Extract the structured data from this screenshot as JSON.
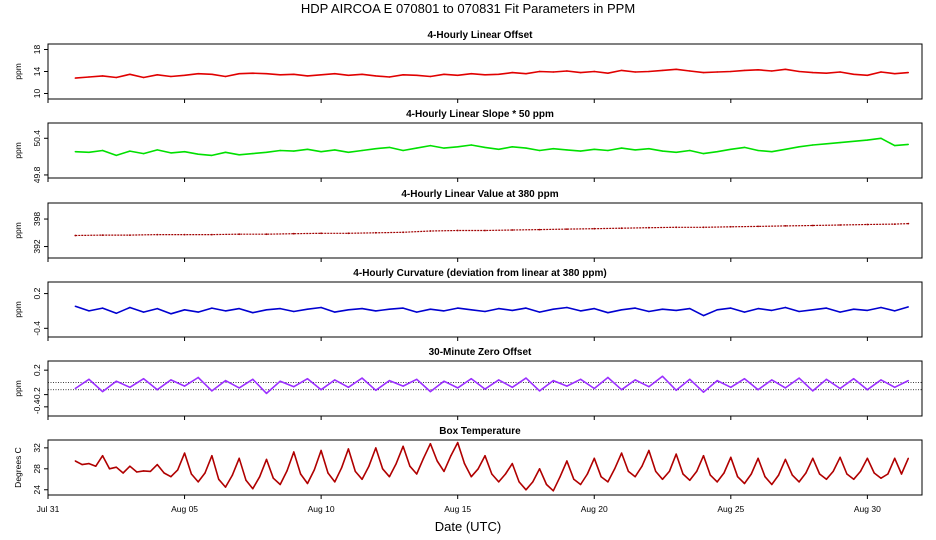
{
  "page_title": "HDP   AIRCOA E   070801 to 070831   Fit Parameters in PPM",
  "xlabel": "Date (UTC)",
  "x_ticks": [
    "Jul 31",
    "Aug 05",
    "Aug 10",
    "Aug 15",
    "Aug 20",
    "Aug 25",
    "Aug 30"
  ],
  "colors": {
    "linear_offset": "#e00000",
    "linear_slope": "#00e000",
    "linear_value": "#a00000",
    "curvature": "#0000d0",
    "zero_offset": "#9b30ff",
    "box_temperature": "#b00000",
    "frame": "#000000"
  },
  "chart_data": [
    {
      "type": "line",
      "title": "4-Hourly Linear Offset",
      "ylabel": "ppm",
      "y_ticks": [
        "10",
        "14",
        "18"
      ],
      "ylim": [
        9,
        19
      ],
      "xlim": [
        0,
        32
      ],
      "grid": false,
      "series": [
        {
          "x": [
            1.0,
            1.5,
            2.0,
            2.5,
            3.0,
            3.5,
            4.0,
            4.5,
            5.0,
            5.5,
            6.0,
            6.5,
            7.0,
            7.5,
            8.0,
            8.5,
            9.0,
            9.5,
            10.0,
            10.5,
            11.0,
            11.5,
            12.0,
            12.5,
            13.0,
            13.5,
            14.0,
            14.5,
            15.0,
            15.5,
            16.0,
            16.5,
            17.0,
            17.5,
            18.0,
            18.5,
            19.0,
            19.5,
            20.0,
            20.5,
            21.0,
            21.5,
            22.0,
            22.5,
            23.0,
            23.5,
            24.0,
            24.5,
            25.0,
            25.5,
            26.0,
            26.5,
            27.0,
            27.5,
            28.0,
            28.5,
            29.0,
            29.5,
            30.0,
            30.5,
            31.0,
            31.5
          ],
          "values": [
            12.8,
            13.0,
            13.2,
            12.9,
            13.5,
            12.9,
            13.4,
            13.1,
            13.3,
            13.6,
            13.5,
            13.1,
            13.6,
            13.7,
            13.6,
            13.4,
            13.5,
            13.2,
            13.4,
            13.6,
            13.3,
            13.5,
            13.2,
            13.0,
            13.4,
            13.3,
            13.1,
            13.5,
            13.3,
            13.6,
            13.4,
            13.5,
            13.8,
            13.6,
            14.0,
            13.9,
            14.1,
            13.8,
            14.0,
            13.7,
            14.2,
            13.9,
            14.0,
            14.2,
            14.4,
            14.1,
            13.8,
            13.9,
            14.0,
            14.2,
            14.3,
            14.1,
            14.4,
            14.0,
            13.8,
            13.7,
            13.9,
            13.5,
            13.3,
            13.9,
            13.6,
            13.8
          ]
        }
      ]
    },
    {
      "type": "line",
      "title": "4-Hourly Linear Slope * 50 ppm",
      "ylabel": "ppm",
      "y_ticks": [
        "49.8",
        "50.4"
      ],
      "ylim": [
        49.75,
        50.65
      ],
      "xlim": [
        0,
        32
      ],
      "grid": false,
      "series": [
        {
          "x": [
            1.0,
            1.5,
            2.0,
            2.5,
            3.0,
            3.5,
            4.0,
            4.5,
            5.0,
            5.5,
            6.0,
            6.5,
            7.0,
            7.5,
            8.0,
            8.5,
            9.0,
            9.5,
            10.0,
            10.5,
            11.0,
            11.5,
            12.0,
            12.5,
            13.0,
            13.5,
            14.0,
            14.5,
            15.0,
            15.5,
            16.0,
            16.5,
            17.0,
            17.5,
            18.0,
            18.5,
            19.0,
            19.5,
            20.0,
            20.5,
            21.0,
            21.5,
            22.0,
            22.5,
            23.0,
            23.5,
            24.0,
            24.5,
            25.0,
            25.5,
            26.0,
            26.5,
            27.0,
            27.5,
            28.0,
            28.5,
            29.0,
            29.5,
            30.0,
            30.5,
            31.0,
            31.5
          ],
          "values": [
            50.18,
            50.17,
            50.2,
            50.12,
            50.19,
            50.15,
            50.21,
            50.16,
            50.18,
            50.14,
            50.12,
            50.17,
            50.13,
            50.15,
            50.17,
            50.2,
            50.19,
            50.22,
            50.18,
            50.21,
            50.17,
            50.2,
            50.23,
            50.25,
            50.2,
            50.24,
            50.28,
            50.24,
            50.26,
            50.29,
            50.25,
            50.22,
            50.26,
            50.24,
            50.2,
            50.23,
            50.21,
            50.19,
            50.22,
            50.2,
            50.24,
            50.21,
            50.23,
            50.19,
            50.17,
            50.2,
            50.15,
            50.18,
            50.22,
            50.25,
            50.2,
            50.18,
            50.22,
            50.26,
            50.29,
            50.31,
            50.33,
            50.35,
            50.37,
            50.4,
            50.28,
            50.3
          ]
        }
      ]
    },
    {
      "type": "line",
      "title": "4-Hourly Linear Value at 380 ppm",
      "ylabel": "ppm",
      "y_ticks": [
        "392",
        "398"
      ],
      "ylim": [
        389.5,
        401.5
      ],
      "xlim": [
        0,
        32
      ],
      "grid": false,
      "series": [
        {
          "x": [
            1.0,
            2.0,
            3.0,
            4.0,
            5.0,
            6.0,
            7.0,
            8.0,
            9.0,
            10.0,
            11.0,
            12.0,
            13.0,
            14.0,
            15.0,
            16.0,
            17.0,
            18.0,
            19.0,
            20.0,
            21.0,
            22.0,
            23.0,
            24.0,
            25.0,
            26.0,
            27.0,
            28.0,
            29.0,
            30.0,
            31.0,
            31.5
          ],
          "values": [
            394.4,
            394.5,
            394.5,
            394.6,
            394.6,
            394.6,
            394.7,
            394.7,
            394.8,
            394.9,
            394.9,
            395.0,
            395.1,
            395.4,
            395.5,
            395.5,
            395.6,
            395.7,
            395.8,
            395.9,
            396.0,
            396.1,
            396.2,
            396.2,
            396.3,
            396.4,
            396.5,
            396.6,
            396.7,
            396.8,
            396.9,
            397.0
          ]
        }
      ]
    },
    {
      "type": "line",
      "title": "4-Hourly Curvature (deviation from linear at 380 ppm)",
      "ylabel": "ppm",
      "y_ticks": [
        "-0.4",
        "0.2"
      ],
      "ylim": [
        -0.55,
        0.4
      ],
      "xlim": [
        0,
        32
      ],
      "grid": false,
      "series": [
        {
          "x": [
            1.0,
            1.5,
            2.0,
            2.5,
            3.0,
            3.5,
            4.0,
            4.5,
            5.0,
            5.5,
            6.0,
            6.5,
            7.0,
            7.5,
            8.0,
            8.5,
            9.0,
            9.5,
            10.0,
            10.5,
            11.0,
            11.5,
            12.0,
            12.5,
            13.0,
            13.5,
            14.0,
            14.5,
            15.0,
            15.5,
            16.0,
            16.5,
            17.0,
            17.5,
            18.0,
            18.5,
            19.0,
            19.5,
            20.0,
            20.5,
            21.0,
            21.5,
            22.0,
            22.5,
            23.0,
            23.5,
            24.0,
            24.5,
            25.0,
            25.5,
            26.0,
            26.5,
            27.0,
            27.5,
            28.0,
            28.5,
            29.0,
            29.5,
            30.0,
            30.5,
            31.0,
            31.5
          ],
          "values": [
            -0.02,
            -0.1,
            -0.05,
            -0.14,
            -0.04,
            -0.12,
            -0.06,
            -0.15,
            -0.08,
            -0.12,
            -0.05,
            -0.1,
            -0.06,
            -0.13,
            -0.08,
            -0.06,
            -0.11,
            -0.07,
            -0.04,
            -0.12,
            -0.08,
            -0.06,
            -0.1,
            -0.07,
            -0.05,
            -0.12,
            -0.07,
            -0.1,
            -0.05,
            -0.08,
            -0.11,
            -0.06,
            -0.09,
            -0.05,
            -0.12,
            -0.07,
            -0.04,
            -0.1,
            -0.06,
            -0.13,
            -0.08,
            -0.05,
            -0.11,
            -0.07,
            -0.09,
            -0.06,
            -0.18,
            -0.08,
            -0.05,
            -0.12,
            -0.06,
            -0.09,
            -0.04,
            -0.11,
            -0.08,
            -0.05,
            -0.12,
            -0.07,
            -0.09,
            -0.04,
            -0.1,
            -0.03
          ]
        }
      ]
    },
    {
      "type": "line",
      "title": "30-Minute Zero Offset",
      "ylabel": "ppm",
      "y_ticks": [
        "-0.4",
        "-0.2",
        "0.2"
      ],
      "ylim": [
        -0.55,
        0.35
      ],
      "xlim": [
        0,
        32
      ],
      "grid": false,
      "series": [
        {
          "x": [
            1.0,
            1.5,
            2.0,
            2.5,
            3.0,
            3.5,
            4.0,
            4.5,
            5.0,
            5.5,
            6.0,
            6.5,
            7.0,
            7.5,
            8.0,
            8.5,
            9.0,
            9.5,
            10.0,
            10.5,
            11.0,
            11.5,
            12.0,
            12.5,
            13.0,
            13.5,
            14.0,
            14.5,
            15.0,
            15.5,
            16.0,
            16.5,
            17.0,
            17.5,
            18.0,
            18.5,
            19.0,
            19.5,
            20.0,
            20.5,
            21.0,
            21.5,
            22.0,
            22.5,
            23.0,
            23.5,
            24.0,
            24.5,
            25.0,
            25.5,
            26.0,
            26.5,
            27.0,
            27.5,
            28.0,
            28.5,
            29.0,
            29.5,
            30.0,
            30.5,
            31.0,
            31.5
          ],
          "values": [
            -0.1,
            0.05,
            -0.15,
            0.02,
            -0.08,
            0.06,
            -0.12,
            0.04,
            -0.06,
            0.08,
            -0.14,
            0.03,
            -0.09,
            0.05,
            -0.18,
            0.02,
            -0.07,
            0.06,
            -0.12,
            0.04,
            -0.08,
            0.07,
            -0.13,
            0.03,
            -0.06,
            0.05,
            -0.15,
            0.02,
            -0.09,
            0.06,
            -0.11,
            0.04,
            -0.08,
            0.07,
            -0.14,
            0.03,
            -0.06,
            0.05,
            -0.1,
            0.08,
            -0.12,
            0.04,
            -0.07,
            0.1,
            -0.13,
            0.05,
            -0.16,
            0.03,
            -0.08,
            0.06,
            -0.12,
            0.04,
            -0.09,
            0.07,
            -0.14,
            0.05,
            -0.1,
            0.06,
            -0.12,
            0.04,
            -0.08,
            0.03
          ]
        }
      ],
      "reference_lines": [
        0.0,
        -0.12
      ]
    },
    {
      "type": "line",
      "title": "Box Temperature",
      "ylabel": "Degrees C",
      "y_ticks": [
        "24",
        "28",
        "32"
      ],
      "ylim": [
        23,
        33.5
      ],
      "xlim": [
        0,
        32
      ],
      "grid": false,
      "series": [
        {
          "x": [
            1.0,
            1.25,
            1.5,
            1.75,
            2.0,
            2.25,
            2.5,
            2.75,
            3.0,
            3.25,
            3.5,
            3.75,
            4.0,
            4.25,
            4.5,
            4.75,
            5.0,
            5.25,
            5.5,
            5.75,
            6.0,
            6.25,
            6.5,
            6.75,
            7.0,
            7.25,
            7.5,
            7.75,
            8.0,
            8.25,
            8.5,
            8.75,
            9.0,
            9.25,
            9.5,
            9.75,
            10.0,
            10.25,
            10.5,
            10.75,
            11.0,
            11.25,
            11.5,
            11.75,
            12.0,
            12.25,
            12.5,
            12.75,
            13.0,
            13.25,
            13.5,
            13.75,
            14.0,
            14.25,
            14.5,
            14.75,
            15.0,
            15.25,
            15.5,
            15.75,
            16.0,
            16.25,
            16.5,
            16.75,
            17.0,
            17.25,
            17.5,
            17.75,
            18.0,
            18.25,
            18.5,
            18.75,
            19.0,
            19.25,
            19.5,
            19.75,
            20.0,
            20.25,
            20.5,
            20.75,
            21.0,
            21.25,
            21.5,
            21.75,
            22.0,
            22.25,
            22.5,
            22.75,
            23.0,
            23.25,
            23.5,
            23.75,
            24.0,
            24.25,
            24.5,
            24.75,
            25.0,
            25.25,
            25.5,
            25.75,
            26.0,
            26.25,
            26.5,
            26.75,
            27.0,
            27.25,
            27.5,
            27.75,
            28.0,
            28.25,
            28.5,
            28.75,
            29.0,
            29.25,
            29.5,
            29.75,
            30.0,
            30.25,
            30.5,
            30.75,
            31.0,
            31.25,
            31.5
          ],
          "values": [
            29.5,
            28.8,
            29.0,
            28.5,
            30.5,
            28.0,
            28.3,
            27.2,
            28.5,
            27.4,
            27.6,
            27.5,
            28.8,
            27.2,
            26.5,
            27.8,
            31.0,
            27.0,
            25.5,
            27.2,
            30.5,
            26.0,
            24.5,
            26.8,
            30.0,
            25.8,
            24.2,
            26.5,
            29.8,
            26.2,
            25.0,
            27.6,
            31.2,
            27.0,
            25.2,
            27.8,
            31.5,
            27.2,
            25.5,
            28.2,
            31.8,
            27.5,
            26.0,
            28.5,
            32.0,
            28.0,
            26.5,
            29.0,
            32.3,
            28.5,
            27.0,
            30.0,
            32.8,
            29.5,
            27.5,
            30.5,
            33.0,
            29.0,
            26.5,
            28.0,
            30.5,
            27.0,
            25.5,
            27.0,
            29.0,
            25.5,
            24.0,
            25.5,
            28.0,
            25.0,
            23.8,
            26.5,
            29.5,
            26.0,
            25.0,
            27.0,
            30.0,
            26.5,
            25.5,
            28.0,
            31.0,
            27.5,
            26.5,
            28.5,
            31.5,
            27.5,
            26.0,
            27.5,
            30.8,
            27.0,
            25.8,
            27.5,
            30.5,
            26.8,
            25.5,
            27.2,
            30.2,
            26.5,
            25.2,
            27.0,
            30.0,
            26.5,
            25.0,
            26.8,
            29.8,
            26.8,
            25.5,
            27.2,
            30.0,
            27.0,
            26.0,
            27.5,
            30.2,
            27.0,
            26.0,
            27.5,
            30.0,
            27.2,
            26.2,
            27.0,
            30.0,
            27.0,
            30.0
          ]
        }
      ]
    }
  ]
}
